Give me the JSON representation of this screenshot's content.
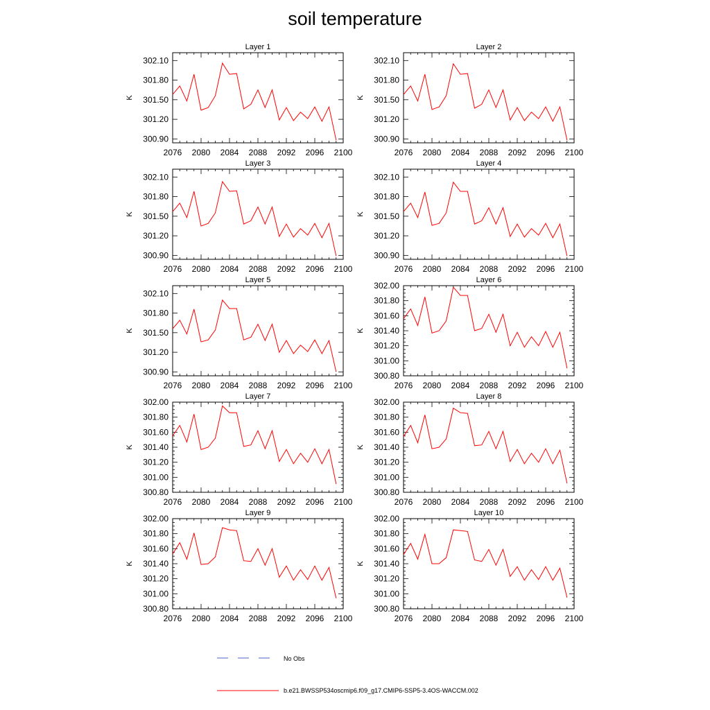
{
  "page": {
    "title": "soil temperature"
  },
  "legend": {
    "obs_label": "No Obs",
    "model_label": "b.e21.BWSSP534oscmip6.f09_g17.CMIP6-SSP5-3.4OS-WACCM.002",
    "colors": {
      "obs": "#4f5fd0",
      "model": "#ff0000"
    }
  },
  "chart_data": [
    {
      "type": "line",
      "title": "Layer 1",
      "xlabel": "",
      "ylabel": "K",
      "xlim": [
        2076,
        2100
      ],
      "xticks": [
        2076,
        2080,
        2084,
        2088,
        2092,
        2096,
        2100
      ],
      "ylim": [
        300.84,
        302.22
      ],
      "yticks": [
        "300.90",
        "301.20",
        "301.50",
        "301.80",
        "302.10"
      ],
      "x": [
        2076,
        2077,
        2078,
        2079,
        2080,
        2081,
        2082,
        2083,
        2084,
        2085,
        2086,
        2087,
        2088,
        2089,
        2090,
        2091,
        2092,
        2093,
        2094,
        2095,
        2096,
        2097,
        2098,
        2099
      ],
      "series": [
        {
          "color": "#ff0000",
          "values": [
            301.58,
            301.71,
            301.48,
            301.89,
            301.34,
            301.38,
            301.56,
            302.06,
            301.89,
            301.9,
            301.36,
            301.43,
            301.65,
            301.38,
            301.65,
            301.19,
            301.38,
            301.18,
            301.31,
            301.21,
            301.39,
            301.17,
            301.39,
            300.88
          ]
        }
      ]
    },
    {
      "type": "line",
      "title": "Layer 2",
      "xlabel": "",
      "ylabel": "K",
      "xlim": [
        2076,
        2100
      ],
      "xticks": [
        2076,
        2080,
        2084,
        2088,
        2092,
        2096,
        2100
      ],
      "ylim": [
        300.84,
        302.22
      ],
      "yticks": [
        "300.90",
        "301.20",
        "301.50",
        "301.80",
        "302.10"
      ],
      "x": [
        2076,
        2077,
        2078,
        2079,
        2080,
        2081,
        2082,
        2083,
        2084,
        2085,
        2086,
        2087,
        2088,
        2089,
        2090,
        2091,
        2092,
        2093,
        2094,
        2095,
        2096,
        2097,
        2098,
        2099
      ],
      "series": [
        {
          "color": "#ff0000",
          "values": [
            301.58,
            301.71,
            301.48,
            301.89,
            301.35,
            301.39,
            301.56,
            302.05,
            301.89,
            301.9,
            301.37,
            301.43,
            301.65,
            301.38,
            301.65,
            301.19,
            301.38,
            301.18,
            301.31,
            301.21,
            301.39,
            301.17,
            301.39,
            300.88
          ]
        }
      ]
    },
    {
      "type": "line",
      "title": "Layer 3",
      "xlabel": "",
      "ylabel": "K",
      "xlim": [
        2076,
        2100
      ],
      "xticks": [
        2076,
        2080,
        2084,
        2088,
        2092,
        2096,
        2100
      ],
      "ylim": [
        300.84,
        302.22
      ],
      "yticks": [
        "300.90",
        "301.20",
        "301.50",
        "301.80",
        "302.10"
      ],
      "x": [
        2076,
        2077,
        2078,
        2079,
        2080,
        2081,
        2082,
        2083,
        2084,
        2085,
        2086,
        2087,
        2088,
        2089,
        2090,
        2091,
        2092,
        2093,
        2094,
        2095,
        2096,
        2097,
        2098,
        2099
      ],
      "series": [
        {
          "color": "#ff0000",
          "values": [
            301.57,
            301.7,
            301.48,
            301.88,
            301.35,
            301.39,
            301.55,
            302.03,
            301.88,
            301.89,
            301.38,
            301.43,
            301.64,
            301.38,
            301.64,
            301.19,
            301.38,
            301.18,
            301.31,
            301.21,
            301.39,
            301.17,
            301.39,
            300.89
          ]
        }
      ]
    },
    {
      "type": "line",
      "title": "Layer 4",
      "xlabel": "",
      "ylabel": "K",
      "xlim": [
        2076,
        2100
      ],
      "xticks": [
        2076,
        2080,
        2084,
        2088,
        2092,
        2096,
        2100
      ],
      "ylim": [
        300.84,
        302.22
      ],
      "yticks": [
        "300.90",
        "301.20",
        "301.50",
        "301.80",
        "302.10"
      ],
      "x": [
        2076,
        2077,
        2078,
        2079,
        2080,
        2081,
        2082,
        2083,
        2084,
        2085,
        2086,
        2087,
        2088,
        2089,
        2090,
        2091,
        2092,
        2093,
        2094,
        2095,
        2096,
        2097,
        2098,
        2099
      ],
      "series": [
        {
          "color": "#ff0000",
          "values": [
            301.57,
            301.7,
            301.48,
            301.87,
            301.36,
            301.39,
            301.55,
            302.02,
            301.88,
            301.88,
            301.38,
            301.43,
            301.63,
            301.38,
            301.63,
            301.19,
            301.38,
            301.18,
            301.31,
            301.21,
            301.39,
            301.17,
            301.38,
            300.89
          ]
        }
      ]
    },
    {
      "type": "line",
      "title": "Layer 5",
      "xlabel": "",
      "ylabel": "K",
      "xlim": [
        2076,
        2100
      ],
      "xticks": [
        2076,
        2080,
        2084,
        2088,
        2092,
        2096,
        2100
      ],
      "ylim": [
        300.84,
        302.22
      ],
      "yticks": [
        "300.90",
        "301.20",
        "301.50",
        "301.80",
        "302.10"
      ],
      "x": [
        2076,
        2077,
        2078,
        2079,
        2080,
        2081,
        2082,
        2083,
        2084,
        2085,
        2086,
        2087,
        2088,
        2089,
        2090,
        2091,
        2092,
        2093,
        2094,
        2095,
        2096,
        2097,
        2098,
        2099
      ],
      "series": [
        {
          "color": "#ff0000",
          "values": [
            301.56,
            301.69,
            301.48,
            301.86,
            301.36,
            301.39,
            301.54,
            302.0,
            301.87,
            301.87,
            301.39,
            301.43,
            301.63,
            301.38,
            301.63,
            301.2,
            301.38,
            301.18,
            301.31,
            301.21,
            301.39,
            301.18,
            301.38,
            300.9
          ]
        }
      ]
    },
    {
      "type": "line",
      "title": "Layer 6",
      "xlabel": "",
      "ylabel": "K",
      "xlim": [
        2076,
        2100
      ],
      "xticks": [
        2076,
        2080,
        2084,
        2088,
        2092,
        2096,
        2100
      ],
      "ylim": [
        300.8,
        302.0
      ],
      "yticks": [
        "300.80",
        "301.00",
        "301.20",
        "301.40",
        "301.60",
        "301.80",
        "302.00"
      ],
      "x": [
        2076,
        2077,
        2078,
        2079,
        2080,
        2081,
        2082,
        2083,
        2084,
        2085,
        2086,
        2087,
        2088,
        2089,
        2090,
        2091,
        2092,
        2093,
        2094,
        2095,
        2096,
        2097,
        2098,
        2099
      ],
      "series": [
        {
          "color": "#ff0000",
          "values": [
            301.56,
            301.69,
            301.47,
            301.85,
            301.37,
            301.4,
            301.53,
            301.98,
            301.87,
            301.87,
            301.4,
            301.43,
            301.62,
            301.38,
            301.62,
            301.2,
            301.38,
            301.18,
            301.32,
            301.2,
            301.39,
            301.18,
            301.38,
            300.9
          ]
        }
      ]
    },
    {
      "type": "line",
      "title": "Layer 7",
      "xlabel": "",
      "ylabel": "K",
      "xlim": [
        2076,
        2100
      ],
      "xticks": [
        2076,
        2080,
        2084,
        2088,
        2092,
        2096,
        2100
      ],
      "ylim": [
        300.8,
        302.0
      ],
      "yticks": [
        "300.80",
        "301.00",
        "301.20",
        "301.40",
        "301.60",
        "301.80",
        "302.00"
      ],
      "x": [
        2076,
        2077,
        2078,
        2079,
        2080,
        2081,
        2082,
        2083,
        2084,
        2085,
        2086,
        2087,
        2088,
        2089,
        2090,
        2091,
        2092,
        2093,
        2094,
        2095,
        2096,
        2097,
        2098,
        2099
      ],
      "series": [
        {
          "color": "#ff0000",
          "values": [
            301.55,
            301.69,
            301.47,
            301.84,
            301.37,
            301.4,
            301.52,
            301.95,
            301.86,
            301.86,
            301.41,
            301.43,
            301.62,
            301.38,
            301.62,
            301.21,
            301.37,
            301.18,
            301.32,
            301.2,
            301.38,
            301.18,
            301.37,
            300.91
          ]
        }
      ]
    },
    {
      "type": "line",
      "title": "Layer 8",
      "xlabel": "",
      "ylabel": "K",
      "xlim": [
        2076,
        2100
      ],
      "xticks": [
        2076,
        2080,
        2084,
        2088,
        2092,
        2096,
        2100
      ],
      "ylim": [
        300.8,
        302.0
      ],
      "yticks": [
        "300.80",
        "301.00",
        "301.20",
        "301.40",
        "301.60",
        "301.80",
        "302.00"
      ],
      "x": [
        2076,
        2077,
        2078,
        2079,
        2080,
        2081,
        2082,
        2083,
        2084,
        2085,
        2086,
        2087,
        2088,
        2089,
        2090,
        2091,
        2092,
        2093,
        2094,
        2095,
        2096,
        2097,
        2098,
        2099
      ],
      "series": [
        {
          "color": "#ff0000",
          "values": [
            301.54,
            301.69,
            301.46,
            301.83,
            301.38,
            301.4,
            301.51,
            301.92,
            301.86,
            301.85,
            301.42,
            301.43,
            301.61,
            301.38,
            301.61,
            301.21,
            301.37,
            301.18,
            301.32,
            301.2,
            301.38,
            301.18,
            301.36,
            300.92
          ]
        }
      ]
    },
    {
      "type": "line",
      "title": "Layer 9",
      "xlabel": "",
      "ylabel": "K",
      "xlim": [
        2076,
        2100
      ],
      "xticks": [
        2076,
        2080,
        2084,
        2088,
        2092,
        2096,
        2100
      ],
      "ylim": [
        300.8,
        302.0
      ],
      "yticks": [
        "300.80",
        "301.00",
        "301.20",
        "301.40",
        "301.60",
        "301.80",
        "302.00"
      ],
      "x": [
        2076,
        2077,
        2078,
        2079,
        2080,
        2081,
        2082,
        2083,
        2084,
        2085,
        2086,
        2087,
        2088,
        2089,
        2090,
        2091,
        2092,
        2093,
        2094,
        2095,
        2096,
        2097,
        2098,
        2099
      ],
      "series": [
        {
          "color": "#ff0000",
          "values": [
            301.53,
            301.68,
            301.46,
            301.81,
            301.39,
            301.4,
            301.49,
            301.88,
            301.85,
            301.84,
            301.44,
            301.43,
            301.6,
            301.38,
            301.6,
            301.22,
            301.37,
            301.18,
            301.32,
            301.19,
            301.37,
            301.18,
            301.35,
            300.94
          ]
        }
      ]
    },
    {
      "type": "line",
      "title": "Layer 10",
      "xlabel": "",
      "ylabel": "K",
      "xlim": [
        2076,
        2100
      ],
      "xticks": [
        2076,
        2080,
        2084,
        2088,
        2092,
        2096,
        2100
      ],
      "ylim": [
        300.8,
        302.0
      ],
      "yticks": [
        "300.80",
        "301.00",
        "301.20",
        "301.40",
        "301.60",
        "301.80",
        "302.00"
      ],
      "x": [
        2076,
        2077,
        2078,
        2079,
        2080,
        2081,
        2082,
        2083,
        2084,
        2085,
        2086,
        2087,
        2088,
        2089,
        2090,
        2091,
        2092,
        2093,
        2094,
        2095,
        2096,
        2097,
        2098,
        2099
      ],
      "series": [
        {
          "color": "#ff0000",
          "values": [
            301.52,
            301.67,
            301.46,
            301.79,
            301.4,
            301.4,
            301.48,
            301.85,
            301.84,
            301.83,
            301.45,
            301.43,
            301.59,
            301.38,
            301.59,
            301.23,
            301.36,
            301.18,
            301.32,
            301.19,
            301.36,
            301.18,
            301.34,
            300.95
          ]
        }
      ]
    }
  ]
}
